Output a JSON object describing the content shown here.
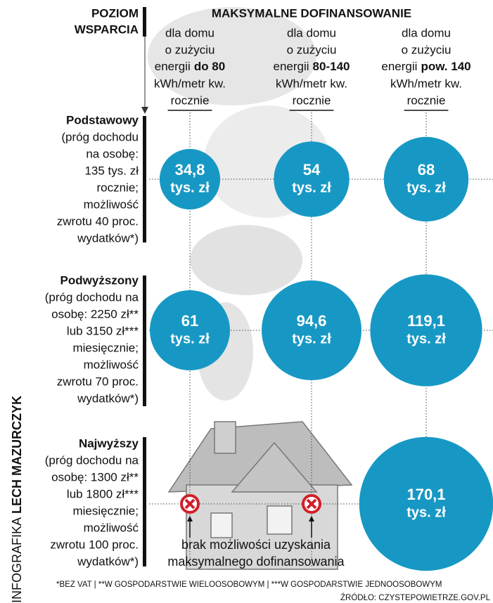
{
  "header": {
    "level_title": [
      "POZIOM",
      "WSPARCIA"
    ],
    "funding_title": "MAKSYMALNE DOFINANSOWANIE"
  },
  "columns": [
    {
      "lines": [
        "dla domu",
        "o zużyciu"
      ],
      "energy_prefix": "energii",
      "energy_bold": "do 80",
      "unit": "kWh/metr kw.",
      "period": "rocznie"
    },
    {
      "lines": [
        "dla domu",
        "o zużyciu"
      ],
      "energy_prefix": "energii",
      "energy_bold": "80-140",
      "unit": "kWh/metr kw.",
      "period": "rocznie"
    },
    {
      "lines": [
        "dla domu",
        "o zużyciu"
      ],
      "energy_prefix": "energii",
      "energy_bold": "pow. 140",
      "unit": "kWh/metr kw.",
      "period": "rocznie"
    }
  ],
  "rows": [
    {
      "title": "Podstawowy",
      "lines": [
        "(próg dochodu",
        "na osobę:",
        "135 tys. zł",
        "rocznie;",
        "możliwość",
        "zwrotu 40 proc.",
        "wydatków*)"
      ],
      "cells": [
        {
          "value": 34.8,
          "label": "34,8"
        },
        {
          "value": 54,
          "label": "54"
        },
        {
          "value": 68,
          "label": "68"
        }
      ]
    },
    {
      "title": "Podwyższony",
      "lines": [
        "(próg dochodu na",
        "osobę: 2250 zł**",
        "lub 3150 zł***",
        "miesięcznie;",
        "możliwość",
        "zwrotu 70 proc.",
        "wydatków*)"
      ],
      "cells": [
        {
          "value": 61,
          "label": "61"
        },
        {
          "value": 94.6,
          "label": "94,6"
        },
        {
          "value": 119.1,
          "label": "119,1"
        }
      ]
    },
    {
      "title": "Najwyższy",
      "lines": [
        "(próg dochodu na",
        "osobę: 1300 zł**",
        "lub 1800 zł***",
        "miesięcznie;",
        "możliwość",
        "zwrotu 100 proc.",
        "wydatków*)"
      ],
      "cells": [
        null,
        null,
        {
          "value": 170.1,
          "label": "170,1"
        }
      ]
    }
  ],
  "currency": "tys. zł",
  "unavailable_note": [
    "brak możliwości uzyskania",
    "maksymalnego dofinansowania"
  ],
  "credit": {
    "prefix": "INFOGRAFIKA",
    "name": "LECH MAZURCZYK"
  },
  "footnotes": "*BEZ VAT | **W GOSPODARSTWIE WIELOOSOBOWYM | ***W GOSPODARSTWIE JEDNOOSOBOWYM",
  "source": "ŹRÓDŁO: CZYSTEPOWIETRZE.GOV.PL"
}
